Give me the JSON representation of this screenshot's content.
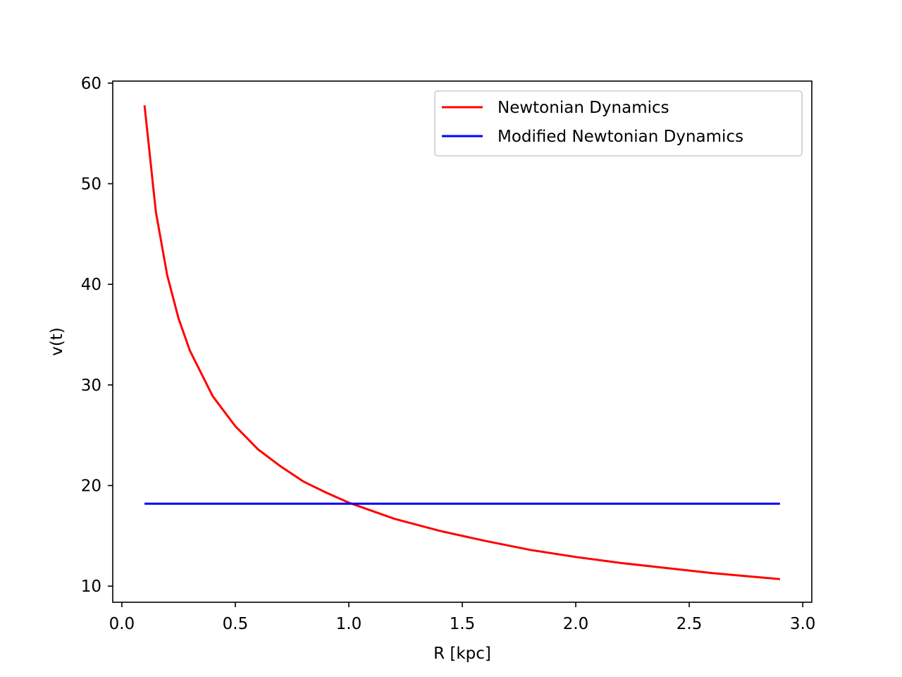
{
  "chart_data": {
    "type": "line",
    "title": "",
    "xlabel": "R [kpc]",
    "ylabel": "v(t)",
    "xlim": [
      -0.04,
      3.04
    ],
    "ylim": [
      8.4,
      60.2
    ],
    "x_ticks": [
      0.0,
      0.5,
      1.0,
      1.5,
      2.0,
      2.5,
      3.0
    ],
    "x_tick_labels": [
      "0.0",
      "0.5",
      "1.0",
      "1.5",
      "2.0",
      "2.5",
      "3.0"
    ],
    "y_ticks": [
      10,
      20,
      30,
      40,
      50,
      60
    ],
    "y_tick_labels": [
      "10",
      "20",
      "30",
      "40",
      "50",
      "60"
    ],
    "grid": false,
    "legend_position": "top-right",
    "series": [
      {
        "name": "Newtonian Dynamics",
        "color": "#ff0000",
        "x": [
          0.1,
          0.15,
          0.2,
          0.25,
          0.3,
          0.4,
          0.5,
          0.6,
          0.7,
          0.8,
          0.9,
          1.0,
          1.2,
          1.4,
          1.6,
          1.8,
          2.0,
          2.2,
          2.4,
          2.6,
          2.8,
          2.9
        ],
        "y": [
          57.8,
          47.2,
          40.9,
          36.6,
          33.4,
          28.9,
          25.9,
          23.6,
          21.9,
          20.4,
          19.3,
          18.3,
          16.7,
          15.5,
          14.5,
          13.6,
          12.9,
          12.3,
          11.8,
          11.3,
          10.9,
          10.7
        ]
      },
      {
        "name": "Modified Newtonian Dynamics",
        "color": "#0000ff",
        "x": [
          0.1,
          2.9
        ],
        "y": [
          18.2,
          18.2
        ]
      }
    ]
  }
}
